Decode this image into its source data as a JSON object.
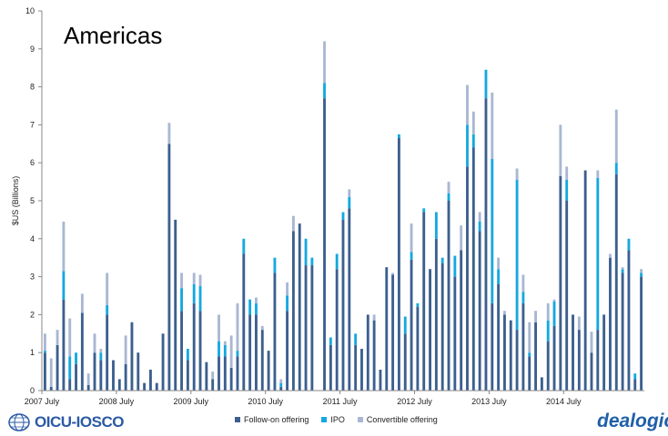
{
  "colors": {
    "follow_on": "#3c5f8f",
    "ipo": "#15a8e0",
    "convertible": "#a9b7d3",
    "grid": "#d9d9d9"
  },
  "logos": {
    "left_text": "OICU-IOSCO",
    "right_text": "dealogic"
  },
  "chart_data": {
    "type": "bar",
    "stacked": true,
    "title": "Americas",
    "xlabel": "",
    "ylabel": "$US (Billions)",
    "ylim": [
      0,
      10
    ],
    "yticks": [
      0,
      1,
      2,
      3,
      4,
      5,
      6,
      7,
      8,
      9,
      10
    ],
    "grid": false,
    "legend": "bottom",
    "x_tick_labels": [
      {
        "index": 0,
        "label": "2007 July"
      },
      {
        "index": 12,
        "label": "2008 July"
      },
      {
        "index": 24,
        "label": "2009 July"
      },
      {
        "index": 36,
        "label": "2010 July"
      },
      {
        "index": 48,
        "label": "2011 July"
      },
      {
        "index": 60,
        "label": "2012 July"
      },
      {
        "index": 72,
        "label": "2013 July"
      },
      {
        "index": 84,
        "label": "2014 July"
      }
    ],
    "series": [
      {
        "name": "Follow-on offering",
        "color": "#3c5f8f",
        "values": [
          1.0,
          0.1,
          1.2,
          2.4,
          0.3,
          0.7,
          2.05,
          0.15,
          1.0,
          0.8,
          2.0,
          0.8,
          0.3,
          0.7,
          1.8,
          1.0,
          0.2,
          0.55,
          0.2,
          1.5,
          6.5,
          4.5,
          2.1,
          0.8,
          2.3,
          2.1,
          0.75,
          0.3,
          0.9,
          0.9,
          0.6,
          0.9,
          3.6,
          2.0,
          2.0,
          1.6,
          1.05,
          3.1,
          0.1,
          2.1,
          4.2,
          4.4,
          3.3,
          3.3,
          0.0,
          7.7,
          1.2,
          3.2,
          4.5,
          4.8,
          1.2,
          1.1,
          2.0,
          1.85,
          0.55,
          3.25,
          3.05,
          6.65,
          1.5,
          3.45,
          2.2,
          4.7,
          3.2,
          4.0,
          3.35,
          5.0,
          3.0,
          3.7,
          5.9,
          6.4,
          4.2,
          7.7,
          2.3,
          2.8,
          2.0,
          1.85,
          1.6,
          2.3,
          0.9,
          1.8,
          0.35,
          1.3,
          1.7,
          5.65,
          5.0,
          2.0,
          1.6,
          5.8,
          1.0,
          1.6,
          2.0,
          3.5,
          5.7,
          3.1,
          3.7,
          0.3,
          3.0
        ]
      },
      {
        "name": "IPO",
        "color": "#15a8e0",
        "values": [
          0.05,
          0.0,
          0.0,
          0.75,
          0.6,
          0.3,
          0.0,
          0.0,
          0.0,
          0.2,
          0.25,
          0.0,
          0.0,
          0.0,
          0.0,
          0.0,
          0.0,
          0.0,
          0.0,
          0.0,
          0.0,
          0.0,
          0.6,
          0.3,
          0.5,
          0.65,
          0.0,
          0.0,
          0.4,
          0.3,
          0.0,
          0.15,
          0.4,
          0.4,
          0.3,
          0.0,
          0.0,
          0.4,
          0.1,
          0.4,
          0.0,
          0.0,
          0.7,
          0.2,
          0.0,
          0.4,
          0.2,
          0.4,
          0.2,
          0.3,
          0.3,
          0.0,
          0.0,
          0.0,
          0.0,
          0.0,
          0.0,
          0.1,
          0.45,
          0.2,
          0.1,
          0.1,
          0.0,
          0.7,
          0.15,
          0.2,
          0.55,
          0.0,
          1.1,
          0.35,
          0.25,
          0.75,
          3.8,
          0.4,
          0.0,
          0.0,
          3.95,
          0.3,
          0.1,
          0.0,
          0.0,
          0.55,
          0.65,
          0.0,
          0.55,
          0.0,
          0.0,
          0.0,
          0.0,
          4.0,
          0.0,
          0.0,
          0.3,
          0.1,
          0.3,
          0.15,
          0.1
        ]
      },
      {
        "name": "Convertible offering",
        "color": "#a9b7d3",
        "values": [
          0.45,
          0.75,
          0.4,
          1.3,
          1.0,
          0.0,
          0.5,
          0.3,
          0.5,
          0.1,
          0.85,
          0.0,
          0.0,
          0.75,
          0.0,
          0.0,
          0.0,
          0.0,
          0.0,
          0.0,
          0.55,
          0.0,
          0.4,
          0.0,
          0.3,
          0.3,
          0.0,
          0.2,
          0.7,
          0.1,
          0.85,
          1.25,
          0.0,
          0.0,
          0.15,
          0.1,
          0.0,
          0.0,
          0.1,
          0.35,
          0.4,
          0.0,
          0.0,
          0.0,
          0.0,
          1.1,
          0.0,
          0.0,
          0.0,
          0.2,
          0.0,
          0.0,
          0.0,
          0.15,
          0.0,
          0.0,
          0.05,
          0.0,
          0.0,
          0.75,
          0.0,
          0.0,
          0.0,
          0.0,
          0.0,
          0.3,
          0.0,
          0.65,
          1.05,
          0.6,
          0.25,
          0.0,
          1.75,
          0.3,
          0.1,
          0.0,
          0.3,
          0.45,
          0.8,
          0.3,
          0.0,
          0.45,
          0.05,
          1.35,
          0.35,
          0.0,
          0.35,
          0.0,
          0.55,
          0.2,
          0.0,
          0.1,
          1.4,
          0.05,
          0.0,
          0.0,
          0.1
        ]
      }
    ]
  }
}
